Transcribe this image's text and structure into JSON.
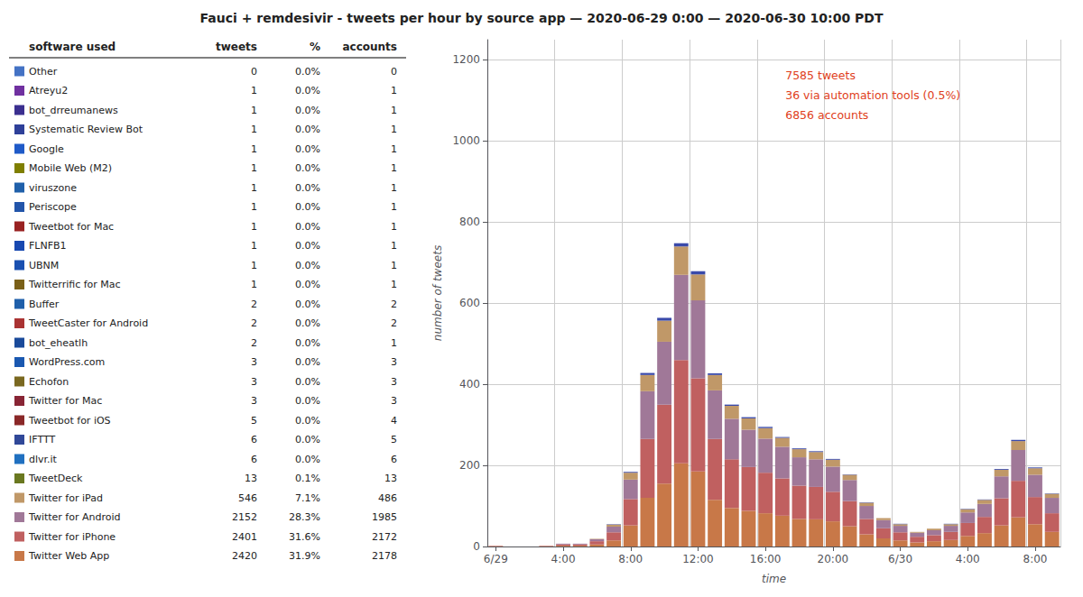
{
  "chart_data": [
    {
      "type": "table",
      "columns": [
        "software used",
        "tweets",
        "%",
        "accounts"
      ],
      "rows": [
        [
          "Other",
          0,
          "0.0%",
          0
        ],
        [
          "Atreyu2",
          1,
          "0.0%",
          1
        ],
        [
          "bot_drreumanews",
          1,
          "0.0%",
          1
        ],
        [
          "Systematic Review Bot",
          1,
          "0.0%",
          1
        ],
        [
          "Google",
          1,
          "0.0%",
          1
        ],
        [
          "Mobile Web (M2)",
          1,
          "0.0%",
          1
        ],
        [
          "viruszone",
          1,
          "0.0%",
          1
        ],
        [
          "Periscope",
          1,
          "0.0%",
          1
        ],
        [
          "Tweetbot for Mac",
          1,
          "0.0%",
          1
        ],
        [
          "FLNFB1",
          1,
          "0.0%",
          1
        ],
        [
          "UBNM",
          1,
          "0.0%",
          1
        ],
        [
          "Twitterrific for Mac",
          1,
          "0.0%",
          1
        ],
        [
          "Buffer",
          2,
          "0.0%",
          2
        ],
        [
          "TweetCaster for Android",
          2,
          "0.0%",
          2
        ],
        [
          "bot_eheatlh",
          2,
          "0.0%",
          1
        ],
        [
          "WordPress.com",
          3,
          "0.0%",
          3
        ],
        [
          "Echofon",
          3,
          "0.0%",
          3
        ],
        [
          "Twitter for Mac",
          3,
          "0.0%",
          3
        ],
        [
          "Tweetbot for iOS",
          5,
          "0.0%",
          4
        ],
        [
          "IFTTT",
          6,
          "0.0%",
          5
        ],
        [
          "dlvr.it",
          6,
          "0.0%",
          6
        ],
        [
          "TweetDeck",
          13,
          "0.1%",
          13
        ],
        [
          "Twitter for iPad",
          546,
          "7.1%",
          486
        ],
        [
          "Twitter for Android",
          2152,
          "28.3%",
          1985
        ],
        [
          "Twitter for iPhone",
          2401,
          "31.6%",
          2172
        ],
        [
          "Twitter Web App",
          2420,
          "31.9%",
          2178
        ]
      ],
      "colors": [
        "#4472c4",
        "#7030a0",
        "#3b2f8f",
        "#2e4099",
        "#1f5ac8",
        "#7f7f00",
        "#2060aa",
        "#2255aa",
        "#992222",
        "#1848b0",
        "#1a50b0",
        "#7a6018",
        "#1f5faa",
        "#aa3333",
        "#1a4a9a",
        "#1a58b0",
        "#7a6820",
        "#882535",
        "#8a2828",
        "#304898",
        "#2070c0",
        "#6a7820",
        "#c09868",
        "#a07898",
        "#c06060",
        "#c87848"
      ]
    },
    {
      "type": "bar",
      "title": "Fauci + remdesivir - tweets per hour by source app — 2020-06-29 0:00 — 2020-06-30 10:00 PDT",
      "xlabel": "time",
      "ylabel": "number of tweets",
      "categories": [
        "6/29",
        null,
        null,
        null,
        "4:00",
        null,
        null,
        null,
        "8:00",
        null,
        null,
        null,
        "12:00",
        null,
        null,
        null,
        "16:00",
        null,
        null,
        null,
        "20:00",
        null,
        null,
        null,
        "6/30",
        null,
        null,
        null,
        "4:00",
        null,
        null,
        null,
        "8:00",
        null
      ],
      "series": [
        {
          "color": "#c87848",
          "values": [
            1,
            0,
            0,
            1,
            2,
            2,
            5,
            15,
            52,
            120,
            155,
            205,
            185,
            115,
            95,
            88,
            82,
            76,
            68,
            67,
            62,
            50,
            30,
            20,
            15,
            10,
            13,
            16,
            26,
            33,
            52,
            72,
            55,
            36
          ]
        },
        {
          "color": "#c06060",
          "values": [
            1,
            0,
            0,
            1,
            3,
            3,
            8,
            20,
            65,
            145,
            195,
            255,
            230,
            150,
            120,
            108,
            100,
            92,
            82,
            80,
            73,
            62,
            38,
            25,
            20,
            14,
            15,
            20,
            32,
            40,
            67,
            90,
            67,
            46
          ]
        },
        {
          "color": "#a07898",
          "values": [
            0,
            0,
            0,
            0,
            2,
            2,
            5,
            14,
            48,
            118,
            155,
            210,
            192,
            120,
            100,
            92,
            84,
            78,
            70,
            68,
            62,
            52,
            32,
            20,
            16,
            10,
            12,
            15,
            26,
            32,
            54,
            76,
            55,
            38
          ]
        },
        {
          "color": "#c09868",
          "values": [
            0,
            0,
            0,
            0,
            0,
            0,
            1,
            5,
            17,
            40,
            52,
            70,
            64,
            38,
            32,
            28,
            26,
            22,
            20,
            18,
            17,
            13,
            8,
            5,
            4,
            2,
            4,
            4,
            8,
            10,
            16,
            22,
            16,
            10
          ]
        },
        {
          "color": "#3a4aaa",
          "values": [
            0,
            0,
            0,
            0,
            0,
            0,
            0,
            1,
            2,
            5,
            7,
            8,
            8,
            4,
            3,
            3,
            3,
            2,
            2,
            2,
            2,
            1,
            1,
            0,
            1,
            0,
            0,
            1,
            1,
            1,
            2,
            3,
            2,
            1
          ]
        }
      ],
      "stacked": true,
      "ylim": [
        0,
        1250
      ],
      "yticks": [
        0,
        200,
        400,
        600,
        800,
        1000,
        1200
      ],
      "grid": true,
      "annotation": {
        "text": "7585 tweets\n36 via automation tools (0.5%)\n6856 accounts",
        "color": "#e04020"
      }
    }
  ]
}
